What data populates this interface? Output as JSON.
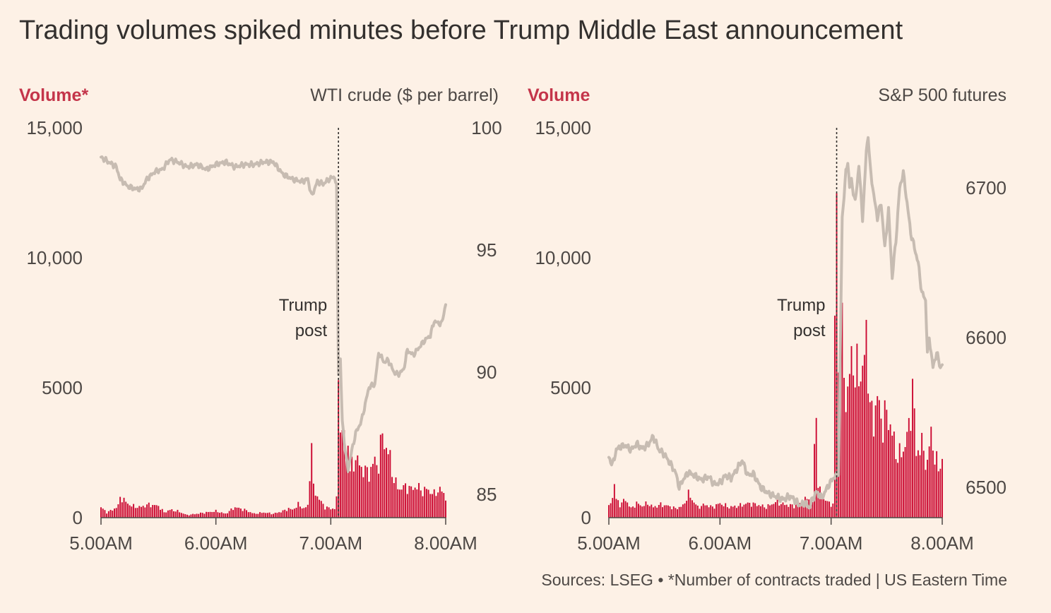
{
  "title": "Trading volumes spiked minutes before Trump Middle East announcement",
  "source": "Sources: LSEG • *Number of contracts traded | US Eastern Time",
  "colors": {
    "background": "#fdf1e6",
    "volume_bars": "#cc0a32",
    "price_line": "#c7bcb2",
    "volume_label": "#c4354a",
    "text": "#4d4845",
    "marker_line": "#33302e"
  },
  "chart_data": [
    {
      "type": "bar",
      "left_axis_label": "Volume*",
      "right_axis_label": "WTI crude ($ per barrel)",
      "left_ticks": [
        {
          "value": 15000,
          "label": "15,000"
        },
        {
          "value": 10000,
          "label": "10,000"
        },
        {
          "value": 5000,
          "label": "5000"
        },
        {
          "value": 0,
          "label": "0"
        }
      ],
      "right_ticks": [
        {
          "value": 100,
          "label": "100"
        },
        {
          "value": 95,
          "label": "95"
        },
        {
          "value": 90,
          "label": "90"
        },
        {
          "value": 85,
          "label": "85"
        }
      ],
      "x_ticks": [
        {
          "value": 0,
          "label": "5.00AM"
        },
        {
          "value": 60,
          "label": "6.00AM"
        },
        {
          "value": 120,
          "label": "7.00AM"
        },
        {
          "value": 180,
          "label": "8.00AM"
        }
      ],
      "x_range_minutes_after_5am": [
        0,
        180
      ],
      "left_ylim": [
        0,
        15000
      ],
      "right_ylim": [
        84,
        100
      ],
      "annotation": {
        "lines": [
          "Trump",
          "post"
        ],
        "minute": 124
      },
      "volume_anchors": [
        [
          0,
          400
        ],
        [
          3,
          200
        ],
        [
          6,
          300
        ],
        [
          9,
          450
        ],
        [
          10,
          800
        ],
        [
          13,
          600
        ],
        [
          16,
          450
        ],
        [
          20,
          400
        ],
        [
          25,
          500
        ],
        [
          30,
          450
        ],
        [
          33,
          200
        ],
        [
          36,
          300
        ],
        [
          40,
          250
        ],
        [
          45,
          100
        ],
        [
          50,
          150
        ],
        [
          55,
          200
        ],
        [
          60,
          250
        ],
        [
          65,
          150
        ],
        [
          70,
          400
        ],
        [
          75,
          300
        ],
        [
          80,
          150
        ],
        [
          85,
          200
        ],
        [
          90,
          150
        ],
        [
          95,
          250
        ],
        [
          98,
          350
        ],
        [
          100,
          300
        ],
        [
          103,
          500
        ],
        [
          106,
          350
        ],
        [
          108,
          450
        ],
        [
          110,
          2900
        ],
        [
          111,
          1100
        ],
        [
          114,
          700
        ],
        [
          117,
          400
        ],
        [
          120,
          350
        ],
        [
          122,
          350
        ],
        [
          123,
          700
        ],
        [
          124,
          5600
        ],
        [
          125,
          3900
        ],
        [
          126,
          2900
        ],
        [
          127,
          3400
        ],
        [
          128,
          2200
        ],
        [
          129,
          3000
        ],
        [
          130,
          1800
        ],
        [
          133,
          2300
        ],
        [
          136,
          1900
        ],
        [
          140,
          1700
        ],
        [
          143,
          2200
        ],
        [
          145,
          2000
        ],
        [
          147,
          3300
        ],
        [
          149,
          2600
        ],
        [
          151,
          2300
        ],
        [
          153,
          1400
        ],
        [
          156,
          1100
        ],
        [
          159,
          1200
        ],
        [
          162,
          1100
        ],
        [
          165,
          1200
        ],
        [
          168,
          1000
        ],
        [
          170,
          1100
        ],
        [
          174,
          900
        ],
        [
          177,
          1100
        ],
        [
          180,
          800
        ]
      ],
      "price_anchors": [
        [
          0,
          98.8
        ],
        [
          4,
          98.6
        ],
        [
          8,
          98.4
        ],
        [
          10,
          97.9
        ],
        [
          14,
          97.6
        ],
        [
          18,
          97.5
        ],
        [
          21,
          97.5
        ],
        [
          24,
          97.9
        ],
        [
          28,
          98.2
        ],
        [
          32,
          98.3
        ],
        [
          36,
          98.7
        ],
        [
          40,
          98.6
        ],
        [
          45,
          98.4
        ],
        [
          50,
          98.5
        ],
        [
          55,
          98.3
        ],
        [
          60,
          98.5
        ],
        [
          65,
          98.6
        ],
        [
          70,
          98.4
        ],
        [
          75,
          98.5
        ],
        [
          80,
          98.5
        ],
        [
          85,
          98.6
        ],
        [
          90,
          98.6
        ],
        [
          95,
          98.1
        ],
        [
          100,
          97.9
        ],
        [
          105,
          97.8
        ],
        [
          108,
          97.9
        ],
        [
          110,
          97.2
        ],
        [
          113,
          97.8
        ],
        [
          116,
          97.7
        ],
        [
          119,
          97.9
        ],
        [
          122,
          98.0
        ],
        [
          123,
          97.6
        ],
        [
          124,
          90.0
        ],
        [
          125,
          90.5
        ],
        [
          126,
          88.0
        ],
        [
          127,
          87.2
        ],
        [
          128,
          86.5
        ],
        [
          129,
          86.0
        ],
        [
          131,
          86.8
        ],
        [
          133,
          87.5
        ],
        [
          136,
          88.0
        ],
        [
          140,
          89.4
        ],
        [
          143,
          89.5
        ],
        [
          145,
          90.8
        ],
        [
          148,
          90.4
        ],
        [
          150,
          90.5
        ],
        [
          153,
          90.0
        ],
        [
          155,
          89.9
        ],
        [
          158,
          90.1
        ],
        [
          160,
          90.9
        ],
        [
          163,
          90.7
        ],
        [
          166,
          91.0
        ],
        [
          169,
          91.3
        ],
        [
          172,
          91.5
        ],
        [
          174,
          92.1
        ],
        [
          176,
          92.0
        ],
        [
          178,
          92.0
        ],
        [
          180,
          92.8
        ]
      ]
    },
    {
      "type": "bar",
      "left_axis_label": "Volume",
      "right_axis_label": "S&P 500 futures",
      "left_ticks": [
        {
          "value": 15000,
          "label": "15,000"
        },
        {
          "value": 10000,
          "label": "10,000"
        },
        {
          "value": 5000,
          "label": "5000"
        },
        {
          "value": 0,
          "label": "0"
        }
      ],
      "right_ticks": [
        {
          "value": 6700,
          "label": "6700"
        },
        {
          "value": 6600,
          "label": "6600"
        },
        {
          "value": 6500,
          "label": "6500"
        }
      ],
      "x_ticks": [
        {
          "value": 0,
          "label": "5.00AM"
        },
        {
          "value": 60,
          "label": "6.00AM"
        },
        {
          "value": 120,
          "label": "7.00AM"
        },
        {
          "value": 180,
          "label": "8.00AM"
        }
      ],
      "x_range_minutes_after_5am": [
        0,
        180
      ],
      "left_ylim": [
        0,
        15000
      ],
      "right_ylim": [
        6480,
        6740
      ],
      "annotation": {
        "lines": [
          "Trump",
          "post"
        ],
        "minute": 123
      },
      "volume_anchors": [
        [
          0,
          400
        ],
        [
          2,
          800
        ],
        [
          3,
          1300
        ],
        [
          4,
          700
        ],
        [
          6,
          500
        ],
        [
          9,
          700
        ],
        [
          12,
          350
        ],
        [
          15,
          550
        ],
        [
          18,
          450
        ],
        [
          21,
          550
        ],
        [
          24,
          400
        ],
        [
          28,
          500
        ],
        [
          32,
          450
        ],
        [
          36,
          350
        ],
        [
          40,
          450
        ],
        [
          43,
          900
        ],
        [
          45,
          700
        ],
        [
          48,
          400
        ],
        [
          52,
          500
        ],
        [
          56,
          400
        ],
        [
          60,
          550
        ],
        [
          65,
          400
        ],
        [
          70,
          450
        ],
        [
          75,
          550
        ],
        [
          80,
          500
        ],
        [
          85,
          400
        ],
        [
          90,
          600
        ],
        [
          95,
          500
        ],
        [
          100,
          450
        ],
        [
          105,
          600
        ],
        [
          108,
          800
        ],
        [
          110,
          600
        ],
        [
          112,
          4500
        ],
        [
          113,
          1200
        ],
        [
          115,
          800
        ],
        [
          118,
          600
        ],
        [
          121,
          500
        ],
        [
          123,
          13600
        ],
        [
          124,
          5600
        ],
        [
          125,
          8800
        ],
        [
          126,
          7100
        ],
        [
          127,
          5500
        ],
        [
          129,
          4400
        ],
        [
          131,
          6600
        ],
        [
          133,
          5200
        ],
        [
          135,
          5900
        ],
        [
          137,
          5300
        ],
        [
          139,
          7300
        ],
        [
          141,
          4100
        ],
        [
          143,
          3800
        ],
        [
          145,
          4600
        ],
        [
          148,
          3500
        ],
        [
          150,
          4100
        ],
        [
          153,
          3200
        ],
        [
          156,
          2300
        ],
        [
          159,
          2600
        ],
        [
          162,
          3400
        ],
        [
          164,
          5100
        ],
        [
          166,
          2500
        ],
        [
          169,
          2800
        ],
        [
          172,
          2000
        ],
        [
          174,
          3400
        ],
        [
          176,
          2200
        ],
        [
          178,
          2000
        ],
        [
          180,
          2100
        ]
      ],
      "price_anchors": [
        [
          0,
          6520
        ],
        [
          2,
          6515
        ],
        [
          4,
          6525
        ],
        [
          6,
          6527
        ],
        [
          9,
          6528
        ],
        [
          12,
          6525
        ],
        [
          15,
          6529
        ],
        [
          18,
          6526
        ],
        [
          21,
          6528
        ],
        [
          24,
          6534
        ],
        [
          27,
          6525
        ],
        [
          30,
          6522
        ],
        [
          33,
          6516
        ],
        [
          36,
          6510
        ],
        [
          38,
          6500
        ],
        [
          40,
          6505
        ],
        [
          43,
          6510
        ],
        [
          46,
          6508
        ],
        [
          50,
          6505
        ],
        [
          54,
          6507
        ],
        [
          57,
          6502
        ],
        [
          60,
          6503
        ],
        [
          63,
          6508
        ],
        [
          66,
          6506
        ],
        [
          69,
          6512
        ],
        [
          72,
          6518
        ],
        [
          75,
          6508
        ],
        [
          78,
          6509
        ],
        [
          82,
          6500
        ],
        [
          86,
          6496
        ],
        [
          90,
          6494
        ],
        [
          94,
          6492
        ],
        [
          98,
          6494
        ],
        [
          100,
          6492
        ],
        [
          103,
          6488
        ],
        [
          106,
          6490
        ],
        [
          108,
          6486
        ],
        [
          110,
          6492
        ],
        [
          112,
          6497
        ],
        [
          115,
          6493
        ],
        [
          118,
          6500
        ],
        [
          121,
          6506
        ],
        [
          123,
          6508
        ],
        [
          124,
          6510
        ],
        [
          125,
          6595
        ],
        [
          126,
          6680
        ],
        [
          127,
          6695
        ],
        [
          128,
          6710
        ],
        [
          129,
          6718
        ],
        [
          130,
          6700
        ],
        [
          131,
          6705
        ],
        [
          133,
          6690
        ],
        [
          135,
          6715
        ],
        [
          137,
          6680
        ],
        [
          138,
          6700
        ],
        [
          139,
          6725
        ],
        [
          140,
          6735
        ],
        [
          141,
          6715
        ],
        [
          143,
          6695
        ],
        [
          145,
          6680
        ],
        [
          147,
          6690
        ],
        [
          149,
          6660
        ],
        [
          151,
          6685
        ],
        [
          153,
          6640
        ],
        [
          155,
          6665
        ],
        [
          157,
          6700
        ],
        [
          159,
          6710
        ],
        [
          161,
          6690
        ],
        [
          163,
          6670
        ],
        [
          165,
          6660
        ],
        [
          167,
          6650
        ],
        [
          169,
          6630
        ],
        [
          171,
          6625
        ],
        [
          172,
          6590
        ],
        [
          173,
          6600
        ],
        [
          175,
          6580
        ],
        [
          177,
          6590
        ],
        [
          179,
          6580
        ],
        [
          180,
          6582
        ]
      ]
    }
  ]
}
